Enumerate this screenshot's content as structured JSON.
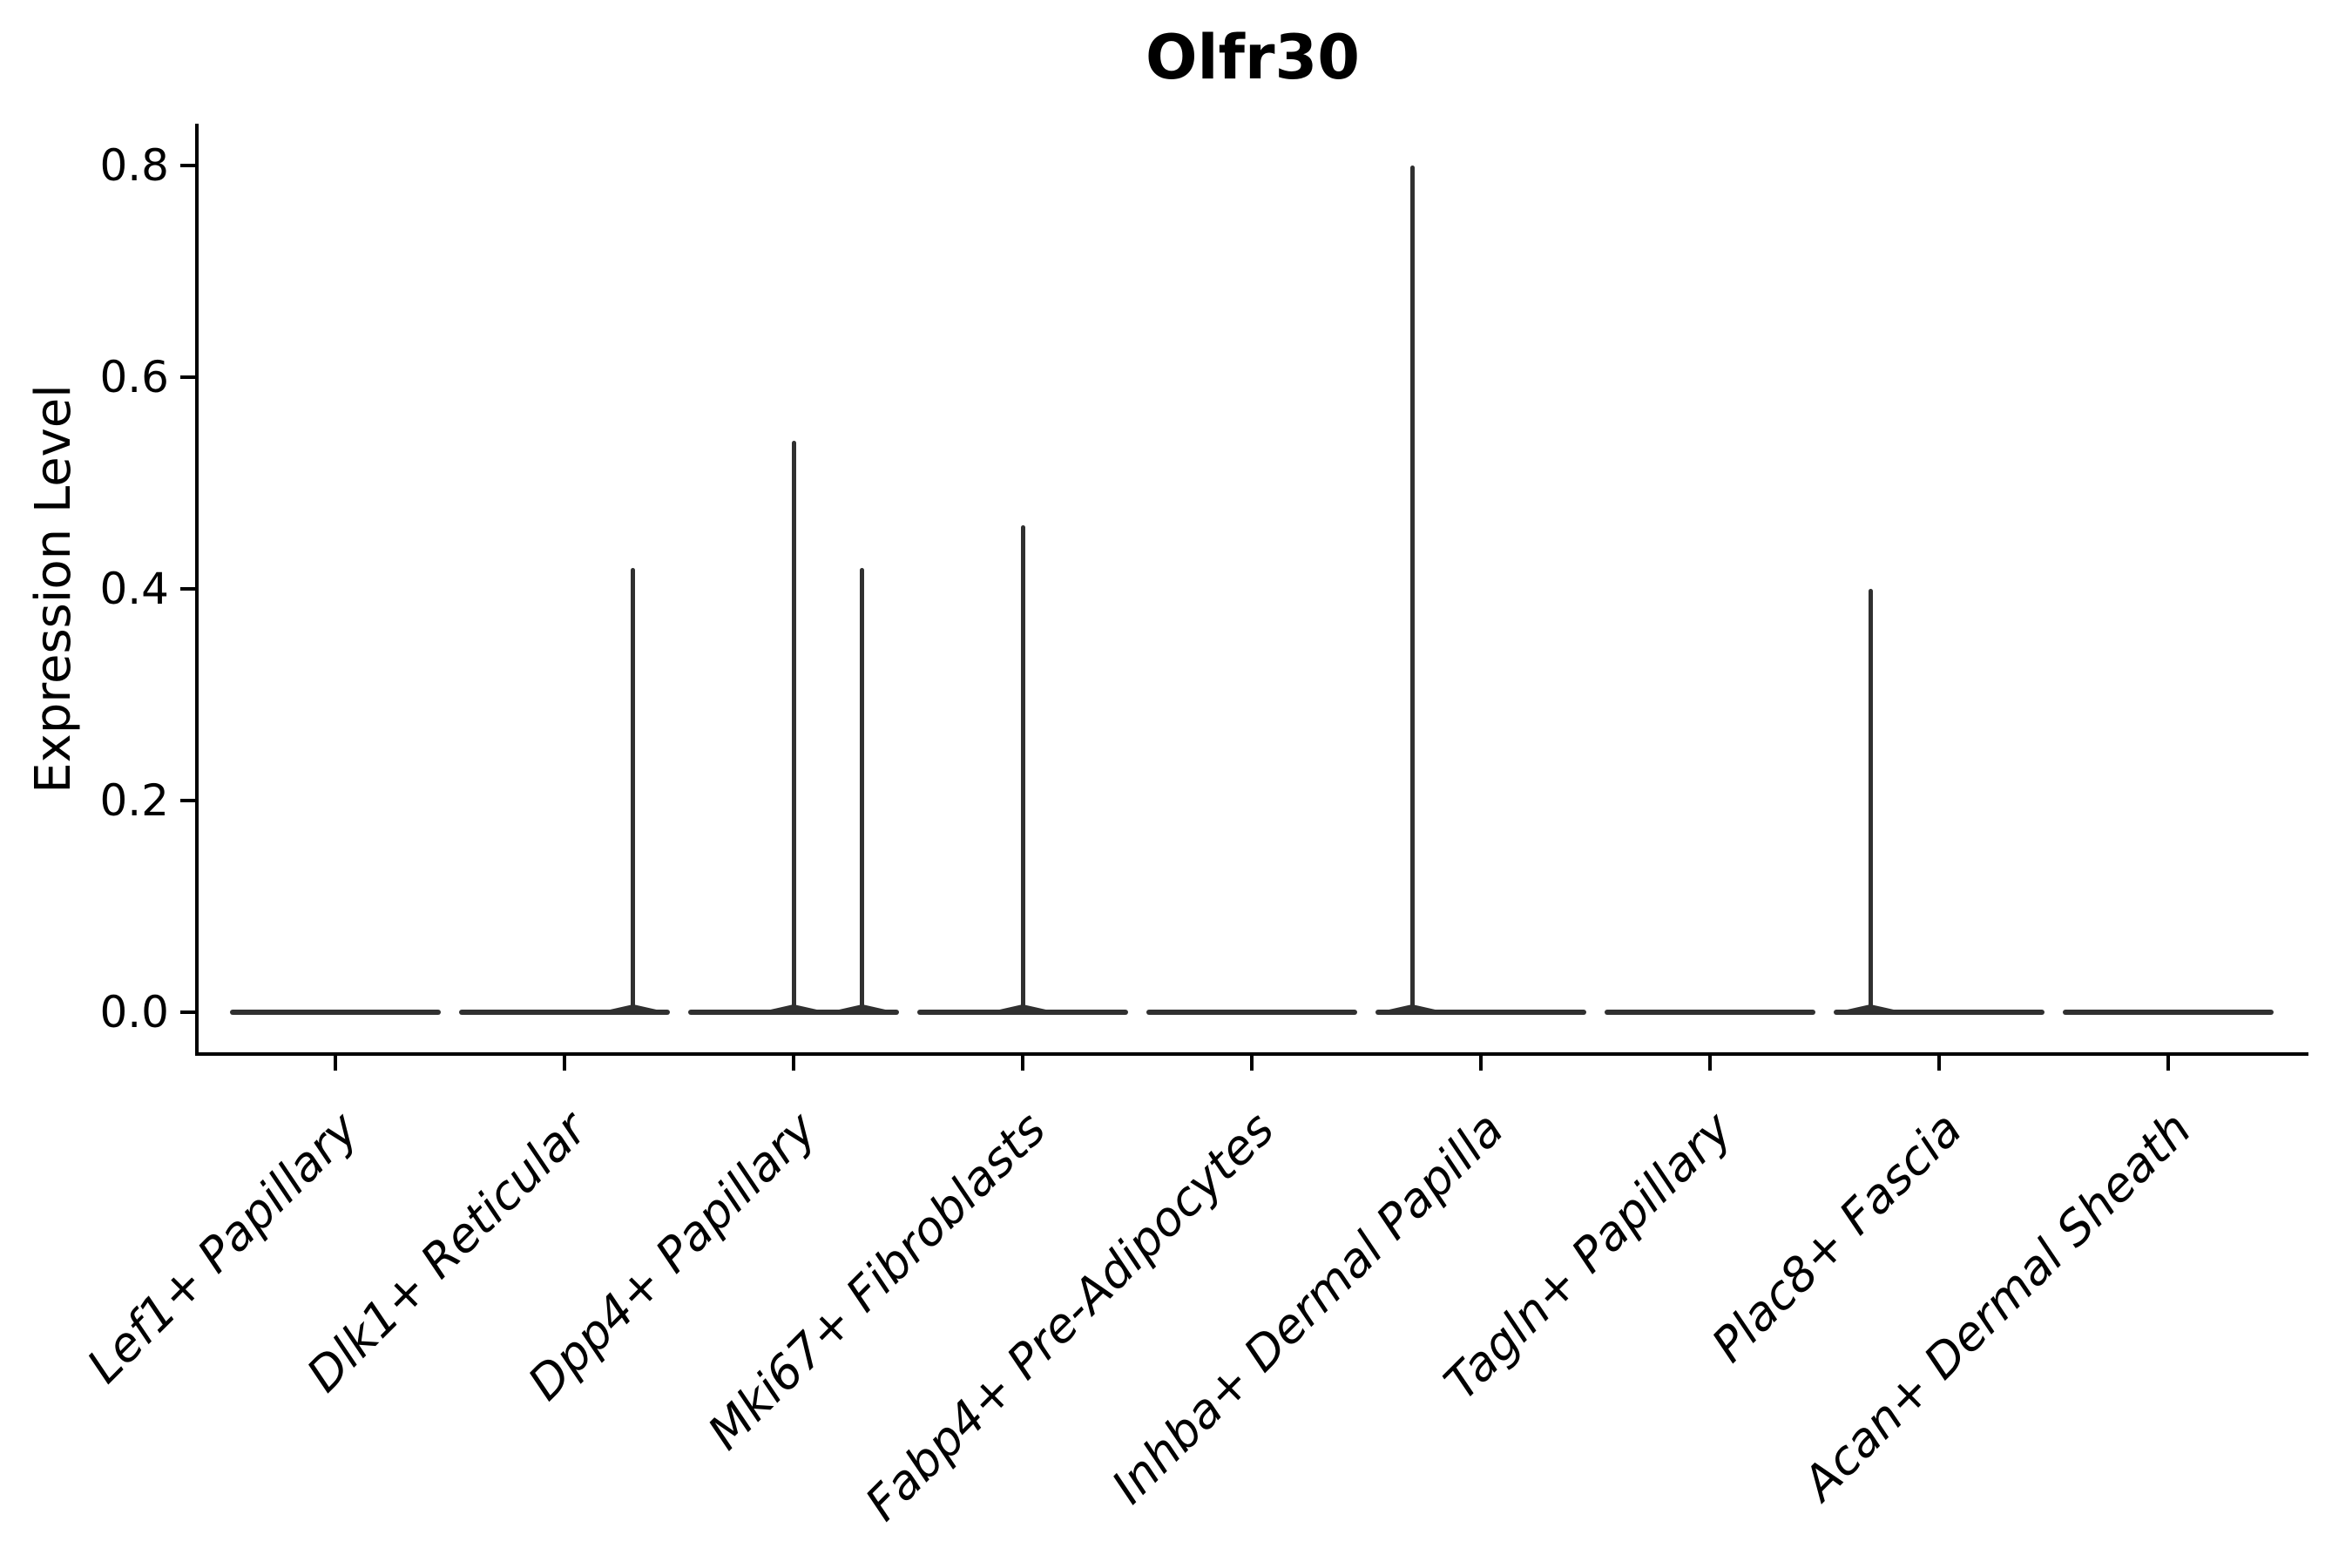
{
  "figure": {
    "title": "Olfr30",
    "y_axis": {
      "label": "Expression Level",
      "tick_labels": [
        "0.0",
        "0.2",
        "0.4",
        "0.6",
        "0.8"
      ],
      "tick_values": [
        0.0,
        0.2,
        0.4,
        0.6,
        0.8
      ]
    },
    "colors": {
      "violin": "#303030",
      "axis": "#000000",
      "text": "#000000",
      "background": "#ffffff"
    }
  },
  "chart_data": {
    "type": "violin",
    "title": "Olfr30",
    "xlabel": "",
    "ylabel": "Expression Level",
    "ylim": [
      -0.04,
      0.84
    ],
    "yticks": [
      0.0,
      0.2,
      0.4,
      0.6,
      0.8
    ],
    "grid": false,
    "legend": null,
    "categories": [
      "Lef1+ Papillary",
      "Dlk1+ Reticular",
      "Dpp4+ Papillary",
      "Mki67+ Fibroblasts",
      "Fabp4+ Pre-Adipocytes",
      "Inhba+ Dermal Papilla",
      "Tagln+ Papillary",
      "Plac8+ Fascia",
      "Acan+ Dermal Sheath"
    ],
    "violin_half_width_frac": 0.46,
    "violins": [
      {
        "category": "Lef1+ Papillary",
        "body_value": 0.0,
        "spikes": []
      },
      {
        "category": "Dlk1+ Reticular",
        "body_value": 0.0,
        "spikes": [
          {
            "value": 0.42,
            "offset_frac": 0.3
          }
        ]
      },
      {
        "category": "Dpp4+ Papillary",
        "body_value": 0.0,
        "spikes": [
          {
            "value": 0.54,
            "offset_frac": 0.0
          },
          {
            "value": 0.42,
            "offset_frac": 0.3
          }
        ]
      },
      {
        "category": "Mki67+ Fibroblasts",
        "body_value": 0.0,
        "spikes": [
          {
            "value": 0.46,
            "offset_frac": 0.0
          }
        ]
      },
      {
        "category": "Fabp4+ Pre-Adipocytes",
        "body_value": 0.0,
        "spikes": []
      },
      {
        "category": "Inhba+ Dermal Papilla",
        "body_value": 0.0,
        "spikes": [
          {
            "value": 0.8,
            "offset_frac": -0.3
          }
        ]
      },
      {
        "category": "Tagln+ Papillary",
        "body_value": 0.0,
        "spikes": []
      },
      {
        "category": "Plac8+ Fascia",
        "body_value": 0.0,
        "spikes": [
          {
            "value": 0.4,
            "offset_frac": -0.3
          }
        ]
      },
      {
        "category": "Acan+ Dermal Sheath",
        "body_value": 0.0,
        "spikes": []
      }
    ]
  }
}
